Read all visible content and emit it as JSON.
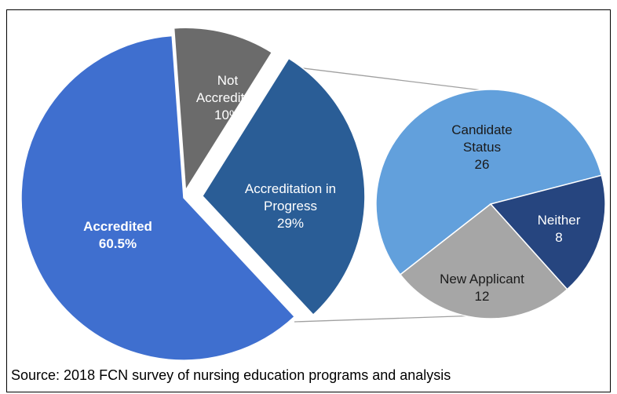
{
  "chart_data": {
    "type": "pie-of-pie",
    "categories": [
      "Accredited",
      "Not Accredited",
      "Accreditation in Progress"
    ],
    "values": [
      60.5,
      10,
      29
    ],
    "value_labels": [
      "60.5%",
      "10%",
      "29%"
    ],
    "colors": [
      "#3f6fcf",
      "#6b6b6b",
      "#2a5d96"
    ],
    "secondary": {
      "categories": [
        "Candidate Status",
        "Neither",
        "New Applicant"
      ],
      "values": [
        26,
        8,
        12
      ],
      "colors": [
        "#62a0dc",
        "#26457f",
        "#a6a6a6"
      ]
    },
    "source": "Source: 2018 FCN survey of nursing education programs and analysis"
  }
}
